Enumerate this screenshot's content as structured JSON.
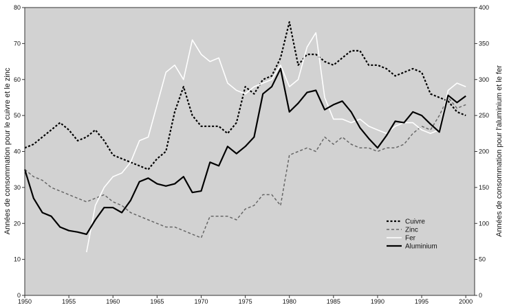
{
  "chart_data": {
    "type": "line",
    "title": "",
    "xlabel": "",
    "ylabel_left": "Années de consommation pour le cuivre et le zinc",
    "ylabel_right": "Années de consommation pour l'aluminium et le fer",
    "xlim": [
      1950,
      2001
    ],
    "ylim_left": [
      0,
      80
    ],
    "ylim_right": [
      0,
      400
    ],
    "x_ticks": [
      "1950",
      "1955",
      "1960",
      "1965",
      "1970",
      "1975",
      "1980",
      "1985",
      "1990",
      "1995",
      "2000"
    ],
    "y_ticks_left": [
      "0",
      "10",
      "20",
      "30",
      "40",
      "50",
      "60",
      "70",
      "80"
    ],
    "y_ticks_right": [
      "0",
      "50",
      "100",
      "150",
      "200",
      "250",
      "300",
      "350",
      "400"
    ],
    "grid": false,
    "legend_position": "lower-right",
    "colors": {
      "plot_background": "#d2d2d2",
      "cuivre": "#000000",
      "zinc": "#666666",
      "fer": "#ffffff",
      "aluminium": "#000000"
    },
    "series": [
      {
        "name": "Cuivre",
        "axis": "left",
        "style": "dotted",
        "x": [
          1950,
          1951,
          1952,
          1953,
          1954,
          1955,
          1956,
          1957,
          1958,
          1959,
          1960,
          1961,
          1962,
          1963,
          1964,
          1965,
          1966,
          1967,
          1968,
          1969,
          1970,
          1971,
          1972,
          1973,
          1974,
          1975,
          1976,
          1977,
          1978,
          1979,
          1980,
          1981,
          1982,
          1983,
          1984,
          1985,
          1986,
          1987,
          1988,
          1989,
          1990,
          1991,
          1992,
          1993,
          1994,
          1995,
          1996,
          1997,
          1998,
          1999,
          2000
        ],
        "values": [
          41,
          42,
          44,
          46,
          48,
          46,
          43,
          44,
          46,
          43,
          39,
          38,
          37,
          36,
          35,
          38,
          40,
          51,
          58,
          50,
          47,
          47,
          47,
          45,
          48,
          58,
          56,
          60,
          61,
          66,
          76,
          64,
          67,
          67,
          65,
          64,
          66,
          68,
          68,
          64,
          64,
          63,
          61,
          62,
          63,
          62,
          56,
          55,
          54,
          51,
          50
        ]
      },
      {
        "name": "Zinc",
        "axis": "left",
        "style": "dashed",
        "x": [
          1950,
          1951,
          1952,
          1953,
          1954,
          1955,
          1956,
          1957,
          1958,
          1959,
          1960,
          1961,
          1962,
          1963,
          1964,
          1965,
          1966,
          1967,
          1968,
          1969,
          1970,
          1971,
          1972,
          1973,
          1974,
          1975,
          1976,
          1977,
          1978,
          1979,
          1980,
          1981,
          1982,
          1983,
          1984,
          1985,
          1986,
          1987,
          1988,
          1989,
          1990,
          1991,
          1992,
          1993,
          1994,
          1995,
          1996,
          1997,
          1998,
          1999,
          2000
        ],
        "values": [
          35,
          33,
          32,
          30,
          29,
          28,
          27,
          26,
          27,
          28,
          26,
          25,
          23,
          22,
          21,
          20,
          19,
          19,
          18,
          17,
          16,
          22,
          22,
          22,
          21,
          24,
          25,
          28,
          28,
          25,
          39,
          40,
          41,
          40,
          44,
          42,
          44,
          42,
          41,
          41,
          40,
          41,
          41,
          42,
          45,
          47,
          46,
          50,
          55,
          52,
          53
        ]
      },
      {
        "name": "Fer",
        "axis": "right",
        "style": "solid-white",
        "x": [
          1957,
          1958,
          1959,
          1960,
          1961,
          1962,
          1963,
          1964,
          1965,
          1966,
          1967,
          1968,
          1969,
          1970,
          1971,
          1972,
          1973,
          1974,
          1975,
          1976,
          1977,
          1978,
          1979,
          1980,
          1981,
          1982,
          1983,
          1984,
          1985,
          1986,
          1987,
          1988,
          1989,
          1990,
          1991,
          1992,
          1993,
          1994,
          1995,
          1996,
          1997,
          1998,
          1999,
          2000
        ],
        "values": [
          60,
          125,
          150,
          165,
          170,
          185,
          215,
          220,
          265,
          310,
          320,
          300,
          355,
          335,
          325,
          330,
          295,
          285,
          280,
          290,
          295,
          300,
          320,
          290,
          300,
          345,
          365,
          275,
          245,
          245,
          240,
          245,
          235,
          230,
          225,
          235,
          240,
          240,
          230,
          225,
          230,
          285,
          295,
          290
        ]
      },
      {
        "name": "Aluminium",
        "axis": "right",
        "style": "solid-thick",
        "x": [
          1950,
          1951,
          1952,
          1953,
          1954,
          1955,
          1956,
          1957,
          1958,
          1959,
          1960,
          1961,
          1962,
          1963,
          1964,
          1965,
          1966,
          1967,
          1968,
          1969,
          1970,
          1971,
          1972,
          1973,
          1974,
          1975,
          1976,
          1977,
          1978,
          1979,
          1980,
          1981,
          1982,
          1983,
          1984,
          1985,
          1986,
          1987,
          1988,
          1989,
          1990,
          1991,
          1992,
          1993,
          1994,
          1995,
          1996,
          1997,
          1998,
          1999,
          2000
        ],
        "values": [
          175,
          135,
          115,
          110,
          95,
          90,
          88,
          85,
          105,
          122,
          122,
          115,
          132,
          158,
          163,
          155,
          152,
          155,
          165,
          143,
          145,
          185,
          180,
          207,
          197,
          207,
          220,
          280,
          290,
          315,
          255,
          267,
          282,
          285,
          258,
          265,
          270,
          255,
          233,
          218,
          205,
          222,
          242,
          240,
          255,
          250,
          238,
          227,
          278,
          268,
          277
        ]
      }
    ]
  }
}
